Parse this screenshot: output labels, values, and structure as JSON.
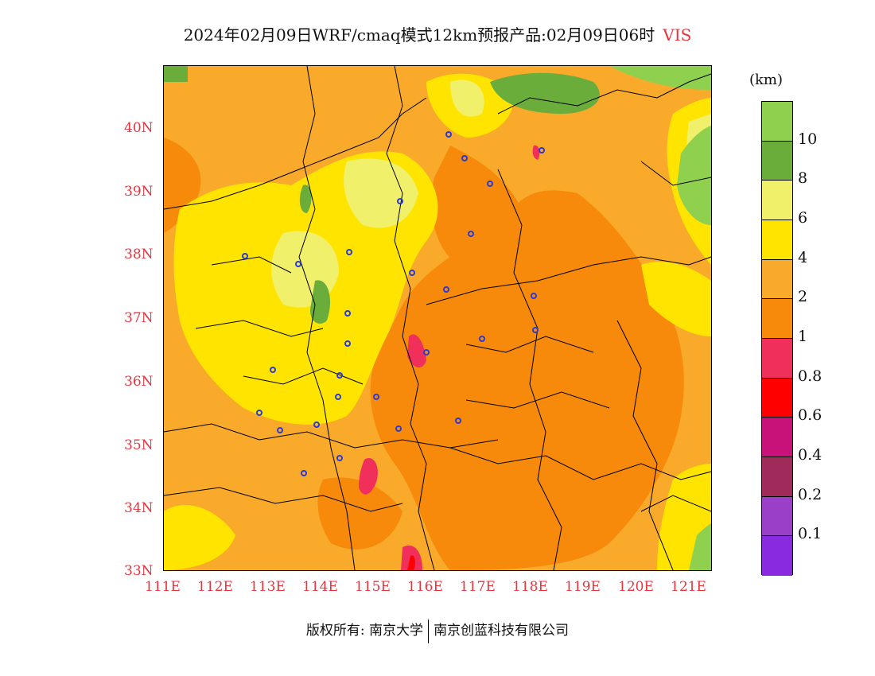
{
  "title": {
    "text": "2024年02月09日WRF/cmaq模式12km预报产品:02月09日06时",
    "variable": "VIS"
  },
  "map": {
    "lat_labels": [
      "40N",
      "39N",
      "38N",
      "37N",
      "36N",
      "35N",
      "34N",
      "33N"
    ],
    "lon_labels": [
      "111E",
      "112E",
      "113E",
      "114E",
      "115E",
      "116E",
      "117E",
      "118E",
      "119E",
      "120E",
      "121E"
    ],
    "lat_range": [
      33,
      41
    ],
    "lon_range": [
      111,
      121.4
    ]
  },
  "legend": {
    "unit": "(km)",
    "labels": [
      "10",
      "8",
      "6",
      "4",
      "2",
      "1",
      "0.8",
      "0.6",
      "0.4",
      "0.2",
      "0.1"
    ],
    "colors": [
      "#8fd14f",
      "#6aad3a",
      "#f0f06a",
      "#ffe400",
      "#f9aa2a",
      "#f78a0a",
      "#f0305a",
      "#ff0000",
      "#c8127a",
      "#a02a5a",
      "#9a40c8",
      "#8a2ae0"
    ]
  },
  "footer": {
    "left": "版权所有: 南京大学",
    "right": "南京创蓝科技有限公司"
  }
}
